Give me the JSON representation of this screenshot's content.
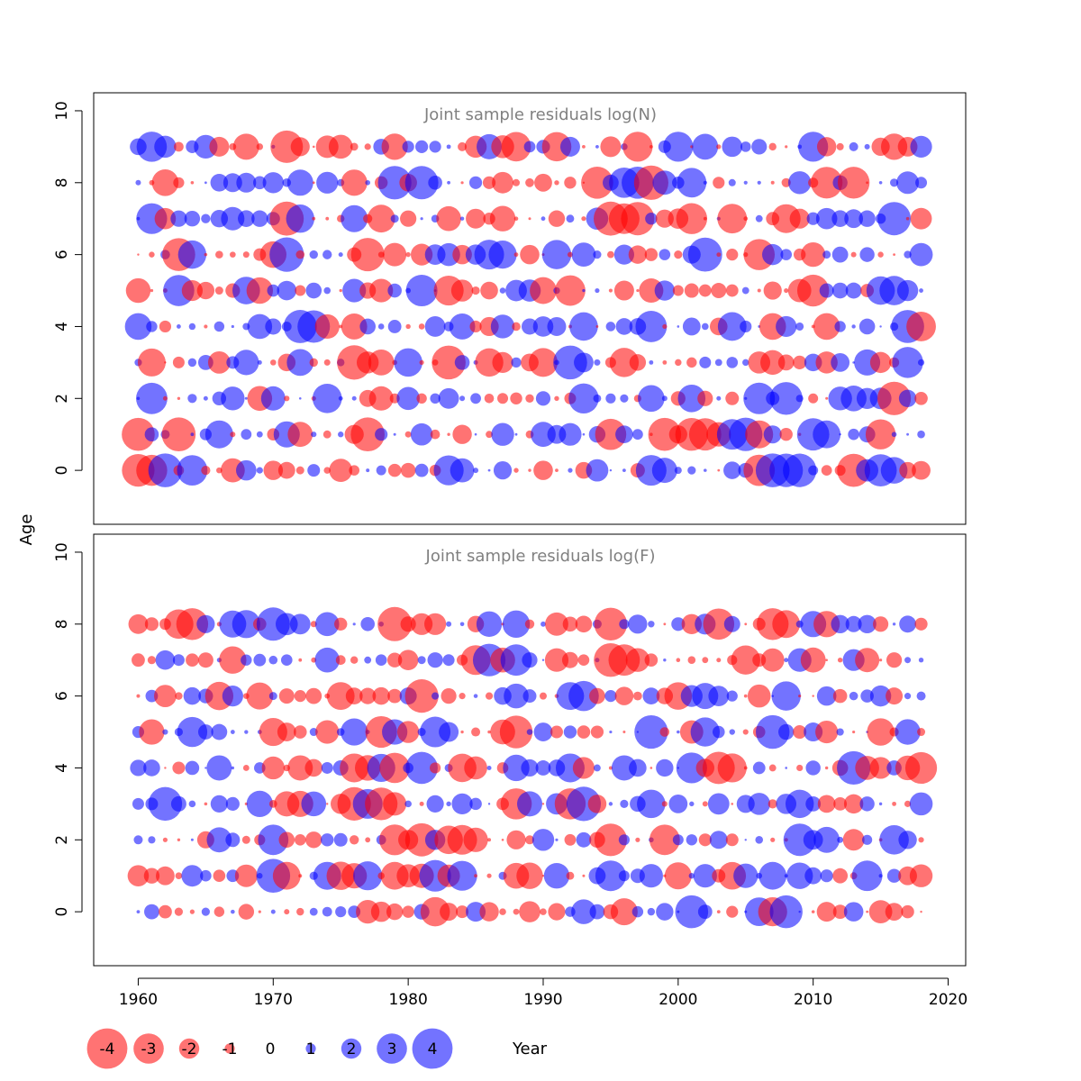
{
  "chart_data": [
    {
      "type": "scatter",
      "subtype": "bubble",
      "title": "Joint sample residuals log(N)",
      "ylabel": "Age",
      "ylim": [
        -1.5,
        10.5
      ],
      "yticks": [
        "0",
        "2",
        "4",
        "6",
        "8",
        "10"
      ],
      "years": [
        1960,
        2018
      ],
      "ages": [
        0,
        1,
        2,
        3,
        4,
        5,
        6,
        7,
        8,
        9
      ],
      "sampled_residuals_note": "residuals by year and age; positive = blue, negative = red"
    },
    {
      "type": "scatter",
      "subtype": "bubble",
      "title": "Joint sample residuals log(F)",
      "ylabel": "Age",
      "ylim": [
        -1.5,
        10.5
      ],
      "yticks": [
        "0",
        "2",
        "4",
        "6",
        "8",
        "10"
      ],
      "years": [
        1960,
        2018
      ],
      "ages": [
        0,
        1,
        2,
        3,
        4,
        5,
        6,
        7,
        8
      ]
    }
  ],
  "xaxis": {
    "label": "Year",
    "xlim": [
      1956.7,
      2021.3
    ],
    "ticks": [
      "1960",
      "1970",
      "1980",
      "1990",
      "2000",
      "2010",
      "2020"
    ]
  },
  "legend": {
    "entries": [
      "-4",
      "-3",
      "-2",
      "-1",
      "0",
      "1",
      "2",
      "3",
      "4"
    ],
    "values": [
      -4,
      -3,
      -2,
      -1,
      0,
      1,
      2,
      3,
      4
    ]
  },
  "colors": {
    "positive": "#0000ff",
    "negative": "#ff0000",
    "title": "#808080",
    "frame": "#000000"
  }
}
